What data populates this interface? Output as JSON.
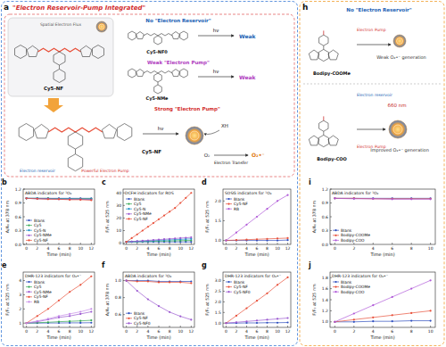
{
  "chart_data": [
    {
      "panel": "b",
      "type": "line",
      "title": "ABDA indicators for ¹O₂",
      "x_label": "Time (min)",
      "y_label": "A/A₀ at 378 nm",
      "x": [
        0,
        2,
        4,
        6,
        8,
        10,
        12
      ],
      "xlim": [
        -0.6,
        12.6
      ],
      "xticks": [
        0,
        2,
        4,
        6,
        8,
        10,
        12
      ],
      "ylim": [
        0,
        1.2
      ],
      "yticks": [
        {
          "value": 0,
          "label": "0.0"
        },
        0.3,
        0.6,
        0.9,
        1.2
      ],
      "grid": false,
      "legend": "lower left",
      "marker": "circle",
      "series": [
        {
          "name": "Blank",
          "color": "#2f4fbf",
          "values": [
            1,
            1,
            1,
            1,
            1,
            1,
            1
          ]
        },
        {
          "name": "Cy5",
          "color": "#34a853",
          "values": [
            1,
            1,
            1,
            0.99,
            0.99,
            0.99,
            0.99
          ]
        },
        {
          "name": "Cy5-N",
          "color": "#1e90c8",
          "values": [
            1,
            1,
            0.99,
            0.99,
            0.99,
            0.98,
            0.98
          ]
        },
        {
          "name": "Cy5-NMe",
          "color": "#9b59d0",
          "values": [
            1,
            0.99,
            0.99,
            0.98,
            0.98,
            0.98,
            0.97
          ]
        },
        {
          "name": "Cy5-NF",
          "color": "#e8503a",
          "values": [
            1,
            0.99,
            0.98,
            0.98,
            0.97,
            0.97,
            0.96
          ]
        }
      ]
    },
    {
      "panel": "c",
      "type": "line",
      "title": "DCFH indicators for ROS",
      "x_label": "Time (min)",
      "y_label": "F/F₀ at 525 nm",
      "x": [
        0,
        1,
        2,
        3,
        4,
        5,
        6,
        7,
        8,
        9,
        10,
        11,
        12
      ],
      "xlim": [
        -0.6,
        12.6
      ],
      "xticks": [
        0,
        2,
        4,
        6,
        8,
        10,
        12
      ],
      "ylim": [
        -1,
        43
      ],
      "yticks": [
        0,
        10,
        20,
        30,
        40
      ],
      "grid": false,
      "legend": "upper left",
      "marker": "circle",
      "series": [
        {
          "name": "Blank",
          "color": "#2f4fbf",
          "values": [
            1,
            1,
            1,
            1,
            1,
            1,
            1,
            1,
            1,
            1,
            1,
            1,
            1
          ]
        },
        {
          "name": "Cy5",
          "color": "#34a853",
          "values": [
            1,
            1.1,
            1.2,
            1.3,
            1.4,
            1.5,
            1.6,
            1.7,
            1.8,
            1.9,
            2,
            2.1,
            2.2
          ]
        },
        {
          "name": "Cy5-N",
          "color": "#1e90c8",
          "values": [
            1,
            1.2,
            1.4,
            1.6,
            1.8,
            2,
            2.2,
            2.4,
            2.6,
            2.8,
            3,
            3.2,
            3.4
          ]
        },
        {
          "name": "Cy5-NMe",
          "color": "#9b59d0",
          "values": [
            1,
            1.3,
            1.6,
            1.9,
            2.2,
            2.5,
            2.8,
            3.1,
            3.4,
            3.7,
            4,
            4.3,
            4.6
          ]
        },
        {
          "name": "Cy5-NF",
          "color": "#e8503a",
          "values": [
            1,
            4,
            7,
            10,
            13,
            16,
            19,
            22,
            25,
            28,
            32,
            36,
            40
          ]
        }
      ]
    },
    {
      "panel": "d",
      "type": "line",
      "title": "SOSG indicators for ¹O₂",
      "x_label": "Time (min)",
      "y_label": "F/F₀ at 525 nm",
      "x": [
        0,
        2,
        4,
        6,
        8,
        10,
        12
      ],
      "xlim": [
        -0.6,
        12.6
      ],
      "xticks": [
        0,
        2,
        4,
        6,
        8,
        10,
        12
      ],
      "ylim": [
        0.9,
        2.3
      ],
      "yticks": [
        {
          "value": 1,
          "label": "1.0"
        },
        1.5,
        {
          "value": 2,
          "label": "2.0"
        }
      ],
      "grid": false,
      "legend": "upper left",
      "marker": "circle",
      "series": [
        {
          "name": "Blank",
          "color": "#2f4fbf",
          "values": [
            1,
            1,
            1,
            1,
            1,
            1,
            1.01
          ]
        },
        {
          "name": "Cy5-NF",
          "color": "#e8503a",
          "values": [
            1,
            1.01,
            1.02,
            1.03,
            1.04,
            1.05,
            1.06
          ]
        },
        {
          "name": "RB",
          "color": "#b05ad8",
          "values": [
            1,
            1.2,
            1.4,
            1.6,
            1.8,
            2.0,
            2.15
          ]
        }
      ]
    },
    {
      "panel": "e",
      "type": "line",
      "title": "DHR-123 indicators for O₂•⁻",
      "x_label": "Time (min)",
      "y_label": "F/F₀ at 525 nm",
      "x": [
        0,
        2,
        4,
        6,
        8,
        10,
        12
      ],
      "xlim": [
        -0.6,
        12.6
      ],
      "xticks": [
        0,
        2,
        4,
        6,
        8,
        10,
        12
      ],
      "ylim": [
        0.7,
        4.6
      ],
      "yticks": [
        1,
        2,
        3,
        4
      ],
      "grid": false,
      "legend": "upper left",
      "marker": "circle",
      "series": [
        {
          "name": "Blank",
          "color": "#2f4fbf",
          "values": [
            1,
            1,
            1.01,
            1.01,
            1.02,
            1.02,
            1.03
          ]
        },
        {
          "name": "Cy5",
          "color": "#34a853",
          "values": [
            1,
            1.03,
            1.06,
            1.1,
            1.13,
            1.16,
            1.2
          ]
        },
        {
          "name": "Cy5-NMe",
          "color": "#9b59d0",
          "values": [
            1,
            1.1,
            1.25,
            1.4,
            1.5,
            1.65,
            1.8
          ]
        },
        {
          "name": "Cy5-NF",
          "color": "#e8503a",
          "values": [
            1,
            1.5,
            2.0,
            2.6,
            3.2,
            3.7,
            4.3
          ]
        },
        {
          "name": "RB",
          "color": "#c58be8",
          "values": [
            1,
            1.15,
            1.3,
            1.5,
            1.65,
            1.8,
            2.0
          ]
        }
      ]
    },
    {
      "panel": "f",
      "type": "line",
      "title": "ABDA indicators for ¹O₂",
      "x_label": "Time (min)",
      "y_label": "A/A₀ at 378 nm",
      "x": [
        0,
        2,
        4,
        6,
        8,
        10,
        12
      ],
      "xlim": [
        -0.6,
        12.6
      ],
      "xticks": [
        0,
        2,
        4,
        6,
        8,
        10,
        12
      ],
      "ylim": [
        0.45,
        1.1
      ],
      "yticks": [
        0.6,
        0.8,
        {
          "value": 1,
          "label": "1.0"
        }
      ],
      "grid": false,
      "legend": "lower left",
      "marker": "circle",
      "series": [
        {
          "name": "Blank",
          "color": "#2f4fbf",
          "values": [
            1,
            1,
            1,
            0.99,
            0.99,
            0.99,
            0.99
          ]
        },
        {
          "name": "Cy5-NF",
          "color": "#e8503a",
          "values": [
            1,
            0.99,
            0.99,
            0.98,
            0.98,
            0.98,
            0.97
          ]
        },
        {
          "name": "Cy5-NF0",
          "color": "#9b59d0",
          "values": [
            1,
            0.88,
            0.78,
            0.7,
            0.63,
            0.58,
            0.54
          ]
        }
      ]
    },
    {
      "panel": "g",
      "type": "line",
      "title": "DHR-123 indicators for O₂•⁻",
      "x_label": "Time (min)",
      "y_label": "F/F₀ at 525 nm",
      "x": [
        0,
        2,
        4,
        6,
        8,
        10,
        12
      ],
      "xlim": [
        -0.6,
        12.6
      ],
      "xticks": [
        0,
        2,
        4,
        6,
        8,
        10,
        12
      ],
      "ylim": [
        0.8,
        3.4
      ],
      "yticks": [
        {
          "value": 1,
          "label": "1.0"
        },
        1.5,
        {
          "value": 2,
          "label": "2.0"
        },
        2.5,
        {
          "value": 3,
          "label": "3.0"
        }
      ],
      "grid": false,
      "legend": "upper left",
      "marker": "circle",
      "series": [
        {
          "name": "Blank",
          "color": "#2f4fbf",
          "values": [
            1,
            1,
            1.01,
            1.01,
            1.02,
            1.02,
            1.03
          ]
        },
        {
          "name": "Cy5-NF",
          "color": "#e8503a",
          "values": [
            1,
            1.35,
            1.7,
            2.05,
            2.4,
            2.8,
            3.15
          ]
        },
        {
          "name": "Cy5-NF0",
          "color": "#9b59d0",
          "values": [
            1,
            1.04,
            1.08,
            1.12,
            1.16,
            1.2,
            1.24
          ]
        }
      ]
    },
    {
      "panel": "i",
      "type": "line",
      "title": "ABDA indicators for ¹O₂",
      "x_label": "Time (min)",
      "y_label": "A/A₀ at 378 nm",
      "x": [
        0,
        2,
        4,
        6,
        8,
        10
      ],
      "xlim": [
        -0.5,
        10.5
      ],
      "xticks": [
        0,
        2,
        4,
        6,
        8,
        10
      ],
      "ylim": [
        0,
        1.2
      ],
      "yticks": [
        {
          "value": 0,
          "label": "0.0"
        },
        0.3,
        0.6,
        0.9,
        1.2
      ],
      "grid": false,
      "legend": "lower left",
      "marker": "circle",
      "series": [
        {
          "name": "Blank",
          "color": "#2f4fbf",
          "values": [
            1,
            1,
            1,
            1,
            1,
            1
          ]
        },
        {
          "name": "Bodipy-COOMe",
          "color": "#e8503a",
          "values": [
            1,
            1,
            0.99,
            0.99,
            0.99,
            0.99
          ]
        },
        {
          "name": "Bodipy-COO",
          "color": "#b05ad8",
          "values": [
            1,
            0.99,
            0.99,
            0.98,
            0.98,
            0.98
          ]
        }
      ]
    },
    {
      "panel": "j",
      "type": "line",
      "title": "DHR-123 indicators for O₂•⁻",
      "x_label": "Time (min)",
      "y_label": "F/F₀ at 525 nm",
      "x": [
        0,
        2,
        4,
        6,
        8,
        10
      ],
      "xlim": [
        -0.5,
        10.5
      ],
      "xticks": [
        0,
        2,
        4,
        6,
        8,
        10
      ],
      "ylim": [
        0.9,
        1.9
      ],
      "yticks": [
        {
          "value": 1,
          "label": "1.0"
        },
        1.2,
        1.4,
        1.6,
        1.8
      ],
      "grid": false,
      "legend": "upper left",
      "marker": "circle",
      "series": [
        {
          "name": "Blank",
          "color": "#2f4fbf",
          "values": [
            1,
            1,
            1.01,
            1.01,
            1.02,
            1.02
          ]
        },
        {
          "name": "Bodipy-COOMe",
          "color": "#e8503a",
          "values": [
            1,
            1.04,
            1.08,
            1.12,
            1.16,
            1.2
          ]
        },
        {
          "name": "Bodipy-COO",
          "color": "#b05ad8",
          "values": [
            1,
            1.15,
            1.3,
            1.45,
            1.6,
            1.75
          ]
        }
      ]
    }
  ],
  "diagram": {
    "panel_a": {
      "label": "a",
      "title": "\"Electron Reservoir-Pump Integrated\"",
      "left_box": {
        "molecule": "Cy5-NF",
        "flux": "Spatial Electron Flux"
      },
      "rows": [
        {
          "heading": "No \"Electron Reservoir\"",
          "molecule": "Cy5-NF0",
          "light": "hν",
          "result": "Weak"
        },
        {
          "heading": "Weak \"Electron Pump\"",
          "molecule": "Cy5-NMe",
          "light": "hν",
          "result": "Weak"
        },
        {
          "heading": "Strong \"Electron Pump\"",
          "molecule": "Cy5-NF",
          "light": "hν",
          "reservoir": "Electron reservoir",
          "pump": "Powerful Electron Pump",
          "oxygen": "O₂",
          "donor": "XH",
          "transfer": "Electron Transfer",
          "product": "O₂•⁻"
        }
      ]
    },
    "panel_h": {
      "label": "h",
      "rows": [
        {
          "heading": "No \"Electron Reservoir\"",
          "molecule": "Bodipy-COOMe",
          "pump": "Electron Pump",
          "result": "Weak O₂•⁻ generation"
        },
        {
          "molecule": "Bodipy-COO",
          "reservoir": "Electron reservoir",
          "pump": "Electron Pump",
          "light": "660 nm",
          "result": "Improved O₂•⁻ generation"
        }
      ]
    }
  }
}
